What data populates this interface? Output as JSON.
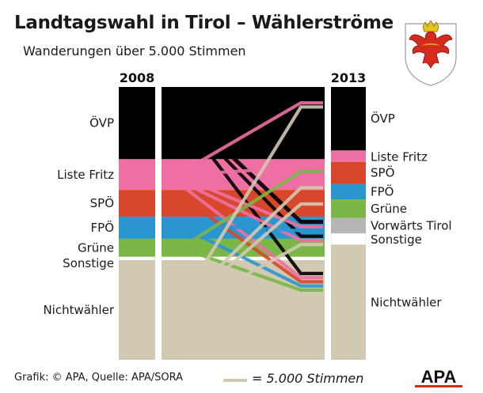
{
  "header": {
    "title": "Landtagswahl in Tirol – Wählerströme",
    "subtitle": "Wanderungen über 5.000 Stimmen"
  },
  "footer": {
    "credit": "Grafik: © APA, Quelle: APA/SORA",
    "legend_label": "= 5.000 Stimmen",
    "logo_text": "APA"
  },
  "colors": {
    "black": "#000000",
    "pink": "#ee6fa3",
    "red": "#d8472b",
    "blue": "#2a96cf",
    "green": "#7ab648",
    "gray": "#b5b5b5",
    "white": "#ffffff",
    "beige": "#d2c9b2"
  },
  "chart_data": {
    "type": "sankey",
    "unit": "stimmen",
    "title": "Landtagswahl in Tirol – Wählerströme",
    "left_year": "2008",
    "right_year": "2013",
    "left": [
      {
        "label": "ÖVP",
        "value": 108000,
        "color": "#000000"
      },
      {
        "label": "Liste Fritz",
        "value": 46000,
        "color": "#ee6fa3"
      },
      {
        "label": "SPÖ",
        "value": 40000,
        "color": "#d8472b"
      },
      {
        "label": "FPÖ",
        "value": 33000,
        "color": "#2a96cf"
      },
      {
        "label": "Grüne",
        "value": 27000,
        "color": "#7ab648"
      },
      {
        "label": "Sonstige",
        "value": 5000,
        "color": "#ffffff"
      },
      {
        "label": "Nichtwähler",
        "value": 149000,
        "color": "#d2c9b2"
      }
    ],
    "right": [
      {
        "label": "ÖVP",
        "value": 95000,
        "color": "#000000"
      },
      {
        "label": "Liste Fritz",
        "value": 17000,
        "color": "#ee6fa3"
      },
      {
        "label": "SPÖ",
        "value": 33000,
        "color": "#d8472b"
      },
      {
        "label": "FPÖ",
        "value": 23000,
        "color": "#2a96cf"
      },
      {
        "label": "Grüne",
        "value": 28000,
        "color": "#7ab648"
      },
      {
        "label": "Vorwärts Tirol",
        "value": 23000,
        "color": "#b5b5b5"
      },
      {
        "label": "Sonstige",
        "value": 17000,
        "color": "#ffffff"
      },
      {
        "label": "Nichtwähler",
        "value": 172000,
        "color": "#d2c9b2"
      }
    ],
    "flows": [
      {
        "from": "ÖVP",
        "to": "ÖVP",
        "value": 79000
      },
      {
        "from": "ÖVP",
        "to": "Vorwärts Tirol",
        "value": 6000
      },
      {
        "from": "ÖVP",
        "to": "Sonstige",
        "value": 5000
      },
      {
        "from": "ÖVP",
        "to": "Nichtwähler",
        "value": 5000
      },
      {
        "from": "Liste Fritz",
        "to": "ÖVP",
        "value": 5000
      },
      {
        "from": "Liste Fritz",
        "to": "Liste Fritz",
        "value": 11000
      },
      {
        "from": "Liste Fritz",
        "to": "SPÖ",
        "value": 5000
      },
      {
        "from": "Liste Fritz",
        "to": "Vorwärts Tirol",
        "value": 5000
      },
      {
        "from": "Liste Fritz",
        "to": "Sonstige",
        "value": 5000
      },
      {
        "from": "Liste Fritz",
        "to": "Nichtwähler",
        "value": 5000
      },
      {
        "from": "SPÖ",
        "to": "SPÖ",
        "value": 24000
      },
      {
        "from": "SPÖ",
        "to": "Nichtwähler",
        "value": 5000
      },
      {
        "from": "FPÖ",
        "to": "FPÖ",
        "value": 18000
      },
      {
        "from": "FPÖ",
        "to": "Vorwärts Tirol",
        "value": 5000
      },
      {
        "from": "FPÖ",
        "to": "Nichtwähler",
        "value": 5000
      },
      {
        "from": "Grüne",
        "to": "SPÖ",
        "value": 5000
      },
      {
        "from": "Grüne",
        "to": "Grüne",
        "value": 17000
      },
      {
        "from": "Grüne",
        "to": "Nichtwähler",
        "value": 5000
      },
      {
        "from": "Nichtwähler",
        "to": "ÖVP",
        "value": 5000
      },
      {
        "from": "Nichtwähler",
        "to": "FPÖ",
        "value": 5000
      },
      {
        "from": "Nichtwähler",
        "to": "Grüne",
        "value": 5000
      },
      {
        "from": "Nichtwähler",
        "to": "Sonstige",
        "value": 5000
      },
      {
        "from": "Nichtwähler",
        "to": "Nichtwähler",
        "value": 120000
      }
    ]
  }
}
